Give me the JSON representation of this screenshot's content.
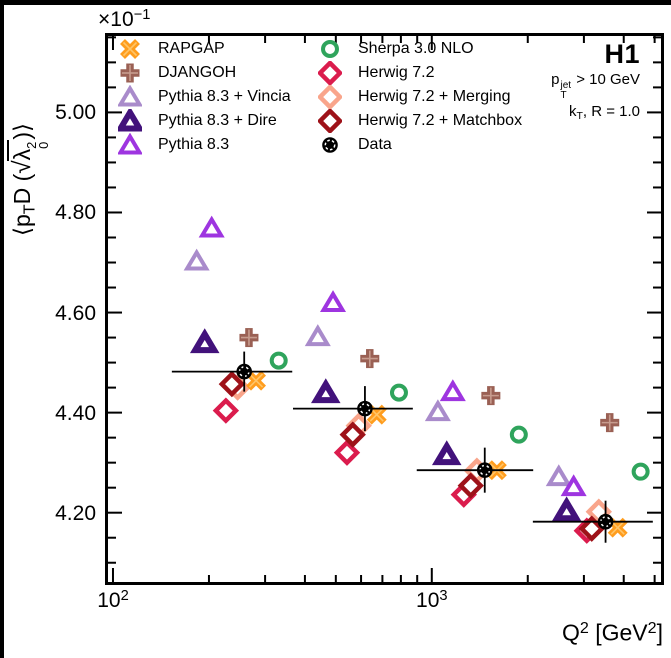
{
  "chart_data": {
    "type": "scatter",
    "power_label": {
      "base": "×10",
      "exp": "−1"
    },
    "annotations": {
      "experiment": "H1",
      "cut1": {
        "base": "p",
        "sup": "jet",
        "sub": "T",
        "rest": " > 10 GeV"
      },
      "cut2": {
        "base": "k",
        "sub": "T",
        "rest": ", R = 1.0"
      }
    },
    "x_axis": {
      "scale": "log",
      "min": 94.4,
      "max": 5350,
      "major": [
        100,
        1000
      ],
      "major_labels": [
        {
          "base": "10",
          "exp": "2"
        },
        {
          "base": "10",
          "exp": "3"
        }
      ],
      "label_parts": {
        "base": "Q",
        "base_sup": "2",
        "unit": " [GeV",
        "unit_sup": "2",
        "close": "]"
      }
    },
    "y_axis": {
      "scale": "linear",
      "min": 4.0555,
      "max": 5.1587,
      "major": [
        5.0,
        4.8,
        4.6,
        4.4,
        4.2
      ],
      "major_labels": [
        "5.00",
        "4.80",
        "4.60",
        "4.40",
        "4.20"
      ],
      "minor_step": 0.05,
      "label_parts": {
        "open": "⟨p",
        "sub": "T",
        "mid": "D (",
        "sqrt": "√",
        "rad": "λ",
        "rad_sup": "2",
        "rad_sub": "0",
        "close": ")⟩"
      }
    },
    "series": [
      {
        "key": "vincia",
        "name": "Pythia 8.3 + Vincia",
        "marker": "triangle",
        "color": "#A98BCB",
        "stroke": 4,
        "points": [
          {
            "q2": 183,
            "value": 4.703
          },
          {
            "q2": 439,
            "value": 4.552
          },
          {
            "q2": 1045,
            "value": 4.402
          },
          {
            "q2": 2502,
            "value": 4.272
          }
        ]
      },
      {
        "key": "dire",
        "name": "Pythia 8.3 + Dire",
        "marker": "triangle",
        "color": "#42127B",
        "stroke": 6,
        "points": [
          {
            "q2": 194,
            "value": 4.54
          },
          {
            "q2": 465,
            "value": 4.44
          },
          {
            "q2": 1114,
            "value": 4.316
          },
          {
            "q2": 2648,
            "value": 4.204
          }
        ]
      },
      {
        "key": "pythia",
        "name": "Pythia 8.3",
        "marker": "triangle",
        "color": "#9E35E0",
        "stroke": 4,
        "points": [
          {
            "q2": 204,
            "value": 4.769
          },
          {
            "q2": 490,
            "value": 4.62
          },
          {
            "q2": 1164,
            "value": 4.442
          },
          {
            "q2": 2786,
            "value": 4.252
          }
        ]
      },
      {
        "key": "djangoh",
        "name": "DJANGOH",
        "marker": "plus",
        "color": "#9A6054",
        "inner": "#C79C8E",
        "stroke": 7.5,
        "points": [
          {
            "q2": 267,
            "value": 4.55
          },
          {
            "q2": 639,
            "value": 4.508
          },
          {
            "q2": 1532,
            "value": 4.434
          },
          {
            "q2": 3615,
            "value": 4.38
          }
        ]
      },
      {
        "key": "sherpa",
        "name": "Sherpa 3.0 NLO",
        "marker": "circle",
        "color": "#2FA45C",
        "stroke": 4,
        "points": [
          {
            "q2": 331,
            "value": 4.504
          },
          {
            "q2": 789,
            "value": 4.44
          },
          {
            "q2": 1875,
            "value": 4.356
          },
          {
            "q2": 4519,
            "value": 4.282
          }
        ]
      },
      {
        "key": "herwig",
        "name": "Herwig 7.2",
        "marker": "diamond",
        "color": "#DB1C4D",
        "stroke": 4.5,
        "points": [
          {
            "q2": 226,
            "value": 4.404
          },
          {
            "q2": 542,
            "value": 4.32
          },
          {
            "q2": 1260,
            "value": 4.236
          },
          {
            "q2": 3063,
            "value": 4.164
          }
        ]
      },
      {
        "key": "merging",
        "name": "Herwig 7.2 + Merging",
        "marker": "diamond",
        "color": "#F9A58B",
        "stroke": 4.5,
        "points": [
          {
            "q2": 246,
            "value": 4.45
          },
          {
            "q2": 590,
            "value": 4.374
          },
          {
            "q2": 1385,
            "value": 4.284
          },
          {
            "q2": 3341,
            "value": 4.202
          }
        ]
      },
      {
        "key": "matchbox",
        "name": "Herwig 7.2 + Matchbox",
        "marker": "diamond",
        "color": "#9E1219",
        "stroke": 4.5,
        "points": [
          {
            "q2": 236,
            "value": 4.457
          },
          {
            "q2": 565,
            "value": 4.356
          },
          {
            "q2": 1325,
            "value": 4.254
          },
          {
            "q2": 3175,
            "value": 4.168
          }
        ]
      },
      {
        "key": "rapgap",
        "name": "RAPGAP",
        "marker": "xcross",
        "color": "#FF9D1E",
        "inner": "#FFC568",
        "stroke": 7,
        "points": [
          {
            "q2": 281,
            "value": 4.464
          },
          {
            "q2": 672,
            "value": 4.396
          },
          {
            "q2": 1600,
            "value": 4.285
          },
          {
            "q2": 3829,
            "value": 4.17
          }
        ]
      },
      {
        "key": "data",
        "name": "Data",
        "marker": "dot",
        "color": "#000000",
        "stroke": 1.8,
        "points": [
          {
            "q2": 258,
            "q2_lo": 153,
            "q2_hi": 365,
            "value": 4.482,
            "err": 0.04
          },
          {
            "q2": 617,
            "q2_lo": 367,
            "q2_hi": 872,
            "value": 4.408,
            "err": 0.045
          },
          {
            "q2": 1466,
            "q2_lo": 897,
            "q2_hi": 2080,
            "value": 4.285,
            "err": 0.045
          },
          {
            "q2": 3508,
            "q2_lo": 2075,
            "q2_hi": 4935,
            "value": 4.182,
            "err": 0.042
          }
        ]
      }
    ]
  },
  "legend": {
    "columns": [
      [
        "rapgap",
        "djangoh",
        "vincia",
        "dire",
        "pythia"
      ],
      [
        "sherpa",
        "herwig",
        "merging",
        "matchbox",
        "data"
      ]
    ]
  }
}
